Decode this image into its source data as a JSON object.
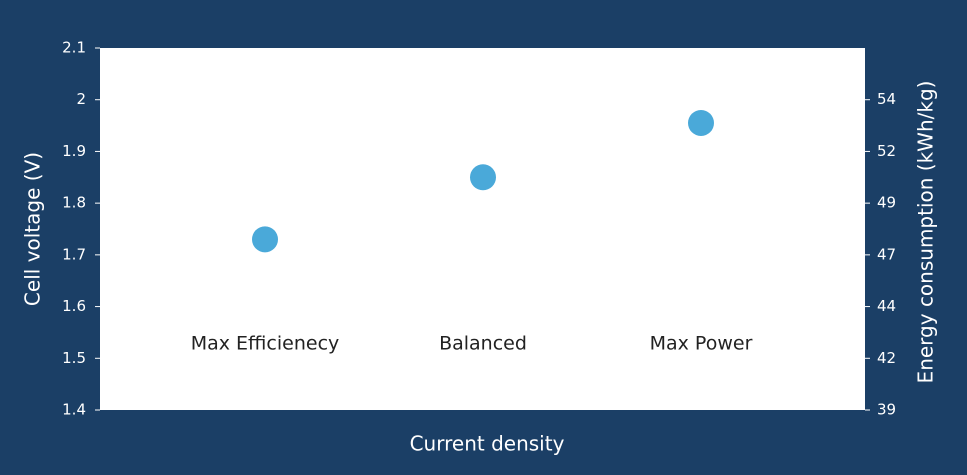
{
  "chart_data": {
    "type": "scatter",
    "xlabel": "Current density",
    "ylabel": "Cell voltage (V)",
    "y2label": "Energy consumption (kWh/kg)",
    "categories": [
      "Max Efficienecy",
      "Balanced",
      "Max Power"
    ],
    "series": [
      {
        "color": "#4aa9d9",
        "values": [
          1.73,
          1.85,
          1.955
        ]
      }
    ],
    "ylim": [
      1.4,
      2.1
    ],
    "yticks": [
      {
        "value": 1.4,
        "label": "1.4"
      },
      {
        "value": 1.5,
        "label": "1.5"
      },
      {
        "value": 1.6,
        "label": "1.6"
      },
      {
        "value": 1.7,
        "label": "1.7"
      },
      {
        "value": 1.8,
        "label": "1.8"
      },
      {
        "value": 1.9,
        "label": "1.9"
      },
      {
        "value": 2.0,
        "label": "2"
      },
      {
        "value": 2.1,
        "label": "2.1"
      }
    ],
    "y2lim": [
      39,
      56.5
    ],
    "y2ticks": [
      {
        "value": 39,
        "label": "39"
      },
      {
        "value": 41.5,
        "label": "42"
      },
      {
        "value": 44,
        "label": "44"
      },
      {
        "value": 46.5,
        "label": "47"
      },
      {
        "value": 49,
        "label": "49"
      },
      {
        "value": 51.5,
        "label": "52"
      },
      {
        "value": 54,
        "label": "54"
      }
    ],
    "grid": false
  }
}
